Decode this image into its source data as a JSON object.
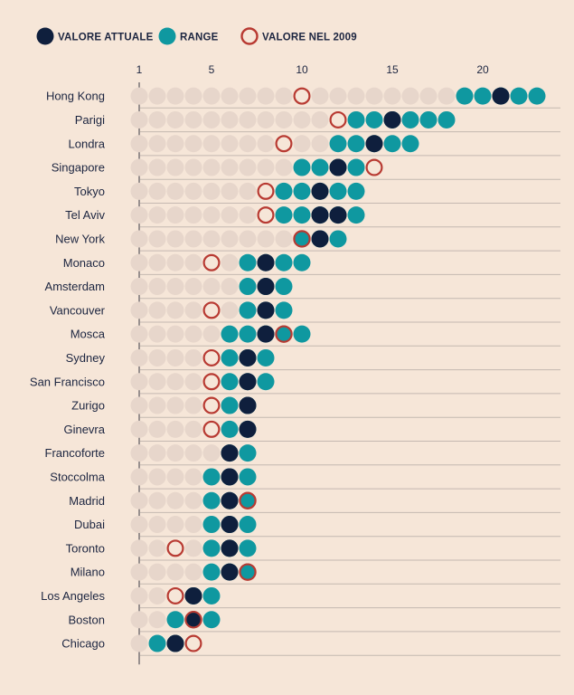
{
  "chart_data": {
    "type": "dot-range",
    "legend": [
      {
        "key": "current",
        "label": "VALORE ATTUALE"
      },
      {
        "key": "range",
        "label": "RANGE"
      },
      {
        "key": "v2009",
        "label": "VALORE NEL 2009"
      }
    ],
    "axis": {
      "min": 1,
      "max": 23,
      "ticks": [
        {
          "value": 1,
          "label": "1"
        },
        {
          "value": 5,
          "label": "5"
        },
        {
          "value": 10,
          "label": "10"
        },
        {
          "value": 15,
          "label": "15"
        },
        {
          "value": 20,
          "label": "20"
        }
      ]
    },
    "rows": [
      {
        "city": "Hong Kong",
        "range": [
          19,
          23
        ],
        "current": 21,
        "v2009": 10
      },
      {
        "city": "Parigi",
        "range": [
          13,
          18
        ],
        "current": 15,
        "v2009": 12
      },
      {
        "city": "Londra",
        "range": [
          12,
          16
        ],
        "current": 14,
        "v2009": 9
      },
      {
        "city": "Singapore",
        "range": [
          10,
          13
        ],
        "current": 12,
        "v2009": 14
      },
      {
        "city": "Tokyo",
        "range": [
          9,
          13
        ],
        "current": 11,
        "v2009": 8
      },
      {
        "city": "Tel Aviv",
        "range": [
          9,
          13
        ],
        "current": 11.5,
        "v2009": 8
      },
      {
        "city": "New York",
        "range": [
          10,
          12
        ],
        "current": 11,
        "v2009": 10
      },
      {
        "city": "Monaco",
        "range": [
          7,
          10
        ],
        "current": 8,
        "v2009": 5
      },
      {
        "city": "Amsterdam",
        "range": [
          7,
          9
        ],
        "current": 8,
        "v2009": null
      },
      {
        "city": "Vancouver",
        "range": [
          7,
          9
        ],
        "current": 8,
        "v2009": 5
      },
      {
        "city": "Mosca",
        "range": [
          6,
          10
        ],
        "current": 8,
        "v2009": 9
      },
      {
        "city": "Sydney",
        "range": [
          6,
          8
        ],
        "current": 7,
        "v2009": 5
      },
      {
        "city": "San Francisco",
        "range": [
          6,
          8
        ],
        "current": 7,
        "v2009": 5
      },
      {
        "city": "Zurigo",
        "range": [
          6,
          7
        ],
        "current": 7,
        "v2009": 5
      },
      {
        "city": "Ginevra",
        "range": [
          6,
          7
        ],
        "current": 7,
        "v2009": 5
      },
      {
        "city": "Francoforte",
        "range": [
          6,
          7
        ],
        "current": 6,
        "v2009": null
      },
      {
        "city": "Stoccolma",
        "range": [
          5,
          7
        ],
        "current": 6,
        "v2009": null
      },
      {
        "city": "Madrid",
        "range": [
          5,
          7
        ],
        "current": 6,
        "v2009": 7
      },
      {
        "city": "Dubai",
        "range": [
          5,
          7
        ],
        "current": 6,
        "v2009": null
      },
      {
        "city": "Toronto",
        "range": [
          5,
          7
        ],
        "current": 6,
        "v2009": 3
      },
      {
        "city": "Milano",
        "range": [
          5,
          7
        ],
        "current": 6,
        "v2009": 7
      },
      {
        "city": "Los Angeles",
        "range": [
          4,
          5
        ],
        "current": 4,
        "v2009": 3
      },
      {
        "city": "Boston",
        "range": [
          3,
          5
        ],
        "current": 4,
        "v2009": 4
      },
      {
        "city": "Chicago",
        "range": [
          2,
          3
        ],
        "current": 3,
        "v2009": 4
      }
    ]
  },
  "colors": {
    "background": "#f6e6d8",
    "navy": "#0f1f3d",
    "teal": "#0f98a0",
    "red": "#b83a32",
    "ghost": "#e7d6cb",
    "grid": "#9a9290",
    "text": "#1c2540"
  }
}
